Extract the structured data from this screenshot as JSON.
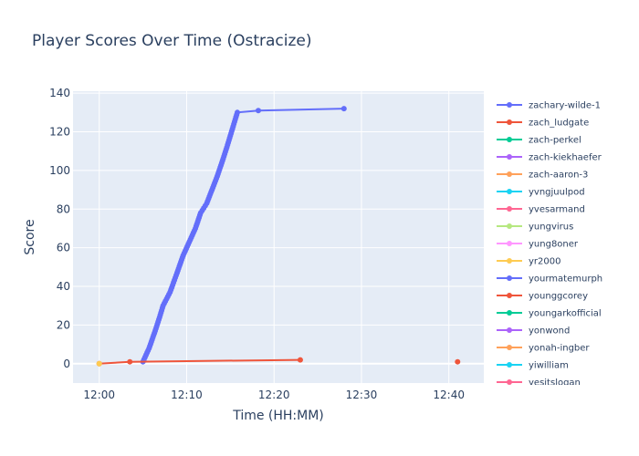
{
  "chart_data": {
    "type": "line",
    "title": "Player Scores Over Time (Ostracize)",
    "xlabel": "Time (HH:MM)",
    "ylabel": "Score",
    "x_unit": "minutes after 12:00",
    "xlim": [
      -3,
      44
    ],
    "ylim": [
      -10,
      141
    ],
    "x_ticks": [
      {
        "value": 0,
        "label": "12:00"
      },
      {
        "value": 10,
        "label": "12:10"
      },
      {
        "value": 20,
        "label": "12:20"
      },
      {
        "value": 30,
        "label": "12:30"
      },
      {
        "value": 40,
        "label": "12:40"
      }
    ],
    "y_ticks": [
      0,
      20,
      40,
      60,
      80,
      100,
      120,
      140
    ],
    "grid": true,
    "legend_position": "right",
    "series": [
      {
        "name": "zachary-wilde-1",
        "color": "#636efa",
        "mode": "lines+markers",
        "x": [
          5.0,
          5.7,
          6.4,
          6.9,
          7.3,
          8.1,
          8.9,
          9.6,
          10.3,
          11.0,
          11.6,
          12.3,
          12.9,
          13.5,
          14.1,
          14.6,
          15.0,
          15.4,
          15.8,
          18.2,
          28.0
        ],
        "y": [
          1,
          8,
          17,
          24,
          30,
          37,
          47,
          56,
          63,
          70,
          78,
          83,
          90,
          97,
          105,
          112,
          118,
          124,
          130,
          131,
          132
        ]
      },
      {
        "name": "zach_ludgate",
        "color": "#ef553b",
        "mode": "lines+markers",
        "x": [
          0.0,
          3.5,
          23.0
        ],
        "y": [
          0,
          1,
          2
        ]
      },
      {
        "name": "zach-perkel",
        "color": "#00cc96",
        "mode": "lines+markers",
        "x": [],
        "y": []
      },
      {
        "name": "zach-kiekhaefer",
        "color": "#ab63fa",
        "mode": "lines+markers",
        "x": [],
        "y": []
      },
      {
        "name": "zach-aaron-3",
        "color": "#ffa15a",
        "mode": "lines+markers",
        "x": [
          0.0
        ],
        "y": [
          0
        ]
      },
      {
        "name": "yvngjuulpod",
        "color": "#19d3f3",
        "mode": "lines+markers",
        "x": [],
        "y": []
      },
      {
        "name": "yvesarmand",
        "color": "#ff6692",
        "mode": "lines+markers",
        "x": [],
        "y": []
      },
      {
        "name": "yungvirus",
        "color": "#b6e880",
        "mode": "lines+markers",
        "x": [],
        "y": []
      },
      {
        "name": "yung8oner",
        "color": "#ff97ff",
        "mode": "lines+markers",
        "x": [],
        "y": []
      },
      {
        "name": "yr2000",
        "color": "#fecb52",
        "mode": "lines+markers",
        "x": [
          0.0
        ],
        "y": [
          0
        ]
      },
      {
        "name": "yourmatemurph",
        "color": "#636efa",
        "mode": "lines+markers",
        "x": [],
        "y": []
      },
      {
        "name": "younggcorey",
        "color": "#ef553b",
        "mode": "lines+markers",
        "x": [
          41.0
        ],
        "y": [
          1
        ]
      },
      {
        "name": "youngarkofficial",
        "color": "#00cc96",
        "mode": "lines+markers",
        "x": [],
        "y": []
      },
      {
        "name": "yonwond",
        "color": "#ab63fa",
        "mode": "lines+markers",
        "x": [],
        "y": []
      },
      {
        "name": "yonah-ingber",
        "color": "#ffa15a",
        "mode": "lines+markers",
        "x": [],
        "y": []
      },
      {
        "name": "yiwilliam",
        "color": "#19d3f3",
        "mode": "lines+markers",
        "x": [],
        "y": []
      },
      {
        "name": "yesitslogan",
        "color": "#ff6692",
        "mode": "lines+markers",
        "x": [],
        "y": []
      }
    ]
  }
}
